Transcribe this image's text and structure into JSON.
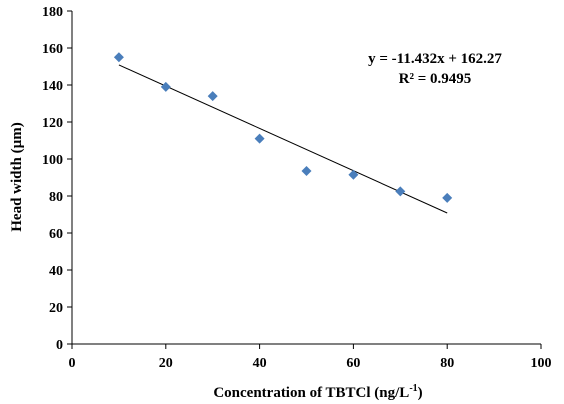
{
  "chart_data": {
    "type": "scatter",
    "xlabel": "Concentration of TBTCl (ng/L",
    "xlabel_sup": "-1",
    "xlabel_close": ")",
    "ylabel": "Head width (µm)",
    "xlim": [
      0,
      100
    ],
    "ylim": [
      0,
      180
    ],
    "xticks": [
      0,
      20,
      40,
      60,
      80,
      100
    ],
    "yticks": [
      0,
      20,
      40,
      60,
      80,
      100,
      120,
      140,
      160,
      180
    ],
    "grid": false,
    "points": [
      {
        "x": 10,
        "y": 155
      },
      {
        "x": 20,
        "y": 139
      },
      {
        "x": 30,
        "y": 134
      },
      {
        "x": 40,
        "y": 111
      },
      {
        "x": 50,
        "y": 93.5
      },
      {
        "x": 60,
        "y": 91.5
      },
      {
        "x": 70,
        "y": 82.5
      },
      {
        "x": 80,
        "y": 79
      }
    ],
    "trendline": {
      "slope": -11.432,
      "intercept": 162.27,
      "x_start": 10,
      "x_end": 80
    },
    "equation": "y = -11.432x + 162.27",
    "r_squared": "R² = 0.9495",
    "marker_color": "#4a7ebb",
    "line_color": "#000000"
  }
}
